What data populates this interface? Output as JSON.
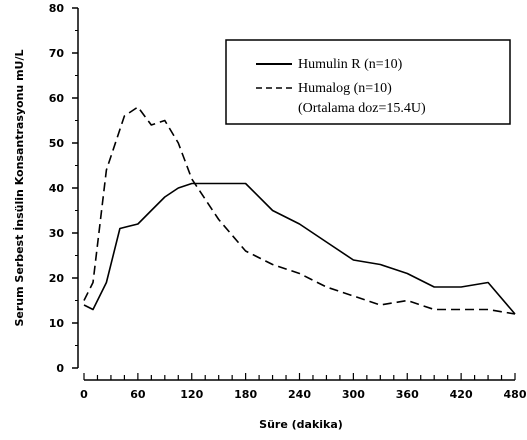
{
  "chart_data": {
    "type": "line",
    "xlabel": "Süre (dakika)",
    "ylabel": "Serum Serbest İnsülin Konsantrasyonu mU/L",
    "xlim": [
      0,
      480
    ],
    "ylim": [
      0,
      80
    ],
    "x_ticks": [
      0,
      60,
      120,
      180,
      240,
      300,
      360,
      420,
      480
    ],
    "y_ticks": [
      0,
      10,
      20,
      30,
      40,
      50,
      60,
      70,
      80
    ],
    "grid": false,
    "legend_position": "top-right",
    "series": [
      {
        "name": "Humulin R (n=10)",
        "style": "solid",
        "color": "#000000",
        "x": [
          0,
          10,
          25,
          40,
          60,
          75,
          90,
          105,
          120,
          135,
          150,
          165,
          180,
          210,
          240,
          270,
          300,
          330,
          345,
          360,
          390,
          420,
          450,
          480
        ],
        "y": [
          14,
          13,
          19,
          31,
          32,
          35,
          38,
          40,
          41,
          41,
          41,
          41,
          41,
          35,
          32,
          28,
          24,
          23,
          22,
          21,
          18,
          18,
          19,
          12
        ]
      },
      {
        "name": "Humalog (n=10)",
        "style": "dashed",
        "color": "#000000",
        "x": [
          0,
          10,
          25,
          45,
          60,
          75,
          90,
          105,
          120,
          150,
          180,
          210,
          240,
          270,
          300,
          330,
          360,
          390,
          420,
          450,
          480
        ],
        "y": [
          15,
          19,
          44,
          56,
          58,
          54,
          55,
          50,
          42,
          33,
          26,
          23,
          21,
          18,
          16,
          14,
          15,
          13,
          13,
          13,
          12
        ]
      }
    ],
    "legend_note": "(Ortalama doz=15.4U)"
  }
}
